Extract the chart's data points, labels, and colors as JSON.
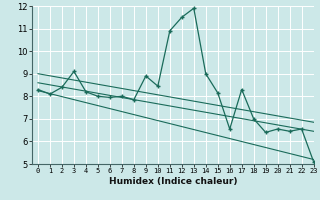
{
  "xlabel": "Humidex (Indice chaleur)",
  "x_values": [
    0,
    1,
    2,
    3,
    4,
    5,
    6,
    7,
    8,
    9,
    10,
    11,
    12,
    13,
    14,
    15,
    16,
    17,
    18,
    19,
    20,
    21,
    22,
    23
  ],
  "y_main": [
    8.3,
    8.1,
    8.4,
    9.1,
    8.2,
    8.0,
    7.95,
    8.0,
    7.85,
    8.9,
    8.45,
    10.9,
    11.5,
    11.9,
    9.0,
    8.15,
    6.55,
    8.3,
    7.0,
    6.4,
    6.55,
    6.45,
    6.55,
    5.1
  ],
  "trend_lines": [
    {
      "x": [
        0,
        23
      ],
      "y": [
        9.0,
        6.85
      ]
    },
    {
      "x": [
        0,
        23
      ],
      "y": [
        8.6,
        6.45
      ]
    },
    {
      "x": [
        0,
        23
      ],
      "y": [
        8.25,
        5.2
      ]
    }
  ],
  "bg_color": "#cce8e8",
  "grid_color": "#b0d8d8",
  "line_color": "#1a6b5a",
  "ylim": [
    5,
    12
  ],
  "xlim": [
    -0.5,
    23
  ],
  "yticks": [
    5,
    6,
    7,
    8,
    9,
    10,
    11,
    12
  ],
  "xticks": [
    0,
    1,
    2,
    3,
    4,
    5,
    6,
    7,
    8,
    9,
    10,
    11,
    12,
    13,
    14,
    15,
    16,
    17,
    18,
    19,
    20,
    21,
    22,
    23
  ]
}
